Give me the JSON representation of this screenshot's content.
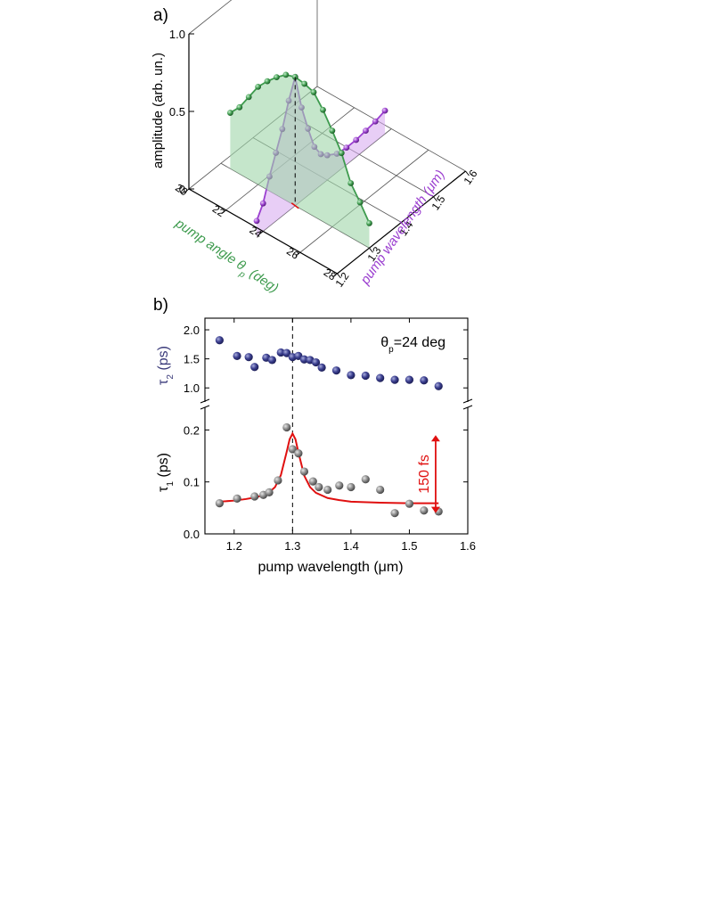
{
  "panel_a": {
    "label": "a)",
    "chart_data": {
      "type": "scatter",
      "subtype": "3d-line-scatter",
      "z_axis": {
        "label": "amplitude (arb. un.)",
        "ticks": [
          "0",
          "0.5",
          "1.0"
        ],
        "range": [
          0,
          1.0
        ]
      },
      "x_axis": {
        "label_main": "pump angle θ",
        "label_sub": "p",
        "label_end": " (deg)",
        "ticks": [
          "20",
          "22",
          "24",
          "26",
          "28"
        ],
        "range": [
          20,
          28
        ]
      },
      "y_axis": {
        "label": "pump wavelength (μm)",
        "ticks": [
          "1.2",
          "1.3",
          "1.4",
          "1.5",
          "1.6"
        ],
        "range": [
          1.2,
          1.6
        ]
      },
      "series": [
        {
          "color": "#3e9b4e",
          "fill": "#9fd6a9",
          "fixed_wavelength_um": 1.3,
          "points": [
            {
              "angle": 20.5,
              "amp": 0.36
            },
            {
              "angle": 21.0,
              "amp": 0.43
            },
            {
              "angle": 21.5,
              "amp": 0.53
            },
            {
              "angle": 22.0,
              "amp": 0.63
            },
            {
              "angle": 22.5,
              "amp": 0.7
            },
            {
              "angle": 23.0,
              "amp": 0.76
            },
            {
              "angle": 23.5,
              "amp": 0.81
            },
            {
              "angle": 24.0,
              "amp": 0.83
            },
            {
              "angle": 24.5,
              "amp": 0.82
            },
            {
              "angle": 25.0,
              "amp": 0.8
            },
            {
              "angle": 25.5,
              "amp": 0.72
            },
            {
              "angle": 26.0,
              "amp": 0.62
            },
            {
              "angle": 26.5,
              "amp": 0.51
            },
            {
              "angle": 27.0,
              "amp": 0.35
            },
            {
              "angle": 27.5,
              "amp": 0.26
            },
            {
              "angle": 28.0,
              "amp": 0.16
            }
          ]
        },
        {
          "color": "#9b3fd0",
          "fill": "#d5a5ee",
          "fixed_angle_deg": 24,
          "points": [
            {
              "wl": 1.18,
              "amp": 0.1
            },
            {
              "wl": 1.2,
              "amp": 0.18
            },
            {
              "wl": 1.22,
              "amp": 0.32
            },
            {
              "wl": 1.24,
              "amp": 0.44
            },
            {
              "wl": 1.26,
              "amp": 0.56
            },
            {
              "wl": 1.28,
              "amp": 0.71
            },
            {
              "wl": 1.3,
              "amp": 0.83
            },
            {
              "wl": 1.32,
              "amp": 0.6
            },
            {
              "wl": 1.34,
              "amp": 0.43
            },
            {
              "wl": 1.36,
              "amp": 0.28
            },
            {
              "wl": 1.38,
              "amp": 0.2
            },
            {
              "wl": 1.4,
              "amp": 0.16
            },
            {
              "wl": 1.43,
              "amp": 0.12
            },
            {
              "wl": 1.46,
              "amp": 0.11
            },
            {
              "wl": 1.49,
              "amp": 0.11
            },
            {
              "wl": 1.52,
              "amp": 0.12
            },
            {
              "wl": 1.55,
              "amp": 0.13
            },
            {
              "wl": 1.58,
              "amp": 0.15
            }
          ]
        }
      ],
      "peak": {
        "angle": 24,
        "wl": 1.3,
        "amp": 0.83
      }
    }
  },
  "panel_b": {
    "label": "b)",
    "chart_data": [
      {
        "type": "scatter",
        "ylabel_main": "τ",
        "ylabel_sub": "2",
        "ylabel_end": " (ps)",
        "ylabel_color": "#3a3a7a",
        "yticks": [
          "1.0",
          "1.5",
          "2.0"
        ],
        "ylim": [
          0.85,
          2.2
        ],
        "xlim": [
          1.15,
          1.6
        ],
        "annotation_main": "θ",
        "annotation_sub": "p",
        "annotation_end": "=24 deg",
        "point_color": "#3a3d8c",
        "x": [
          1.175,
          1.205,
          1.225,
          1.235,
          1.255,
          1.265,
          1.28,
          1.29,
          1.3,
          1.31,
          1.32,
          1.33,
          1.34,
          1.35,
          1.375,
          1.4,
          1.425,
          1.45,
          1.475,
          1.5,
          1.525,
          1.55
        ],
        "y": [
          1.82,
          1.55,
          1.53,
          1.36,
          1.52,
          1.48,
          1.61,
          1.6,
          1.53,
          1.55,
          1.49,
          1.48,
          1.44,
          1.35,
          1.3,
          1.22,
          1.21,
          1.17,
          1.14,
          1.14,
          1.13,
          1.03
        ]
      },
      {
        "type": "scatter",
        "ylabel_main": "τ",
        "ylabel_sub": "1",
        "ylabel_end": " (ps)",
        "ylabel_color": "#000000",
        "yticks": [
          "0.0",
          "0.1",
          "0.2"
        ],
        "ylim": [
          0,
          0.235
        ],
        "xlim": [
          1.15,
          1.6
        ],
        "xticks": [
          "1.2",
          "1.3",
          "1.4",
          "1.5",
          "1.6"
        ],
        "xlabel": "pump wavelength (μm)",
        "point_color": "#8a8a8a",
        "x": [
          1.175,
          1.205,
          1.235,
          1.25,
          1.26,
          1.275,
          1.29,
          1.3,
          1.31,
          1.32,
          1.335,
          1.345,
          1.36,
          1.38,
          1.4,
          1.425,
          1.45,
          1.475,
          1.5,
          1.525,
          1.55
        ],
        "y": [
          0.059,
          0.068,
          0.072,
          0.075,
          0.08,
          0.103,
          0.205,
          0.163,
          0.155,
          0.12,
          0.101,
          0.09,
          0.085,
          0.093,
          0.09,
          0.105,
          0.085,
          0.04,
          0.058,
          0.045,
          0.043
        ],
        "fit": {
          "color": "#e01010",
          "x": [
            1.175,
            1.2,
            1.22,
            1.24,
            1.26,
            1.27,
            1.28,
            1.29,
            1.295,
            1.3,
            1.305,
            1.31,
            1.32,
            1.33,
            1.34,
            1.36,
            1.38,
            1.4,
            1.45,
            1.5,
            1.55
          ],
          "y": [
            0.062,
            0.064,
            0.067,
            0.071,
            0.08,
            0.09,
            0.113,
            0.158,
            0.182,
            0.193,
            0.182,
            0.157,
            0.112,
            0.09,
            0.079,
            0.069,
            0.065,
            0.062,
            0.06,
            0.059,
            0.059
          ]
        },
        "range_marker": {
          "x": 1.545,
          "y_from": 0.04,
          "y_to": 0.19,
          "label": "150 fs",
          "color": "#e01010"
        }
      }
    ],
    "dashed_x": 1.3
  }
}
